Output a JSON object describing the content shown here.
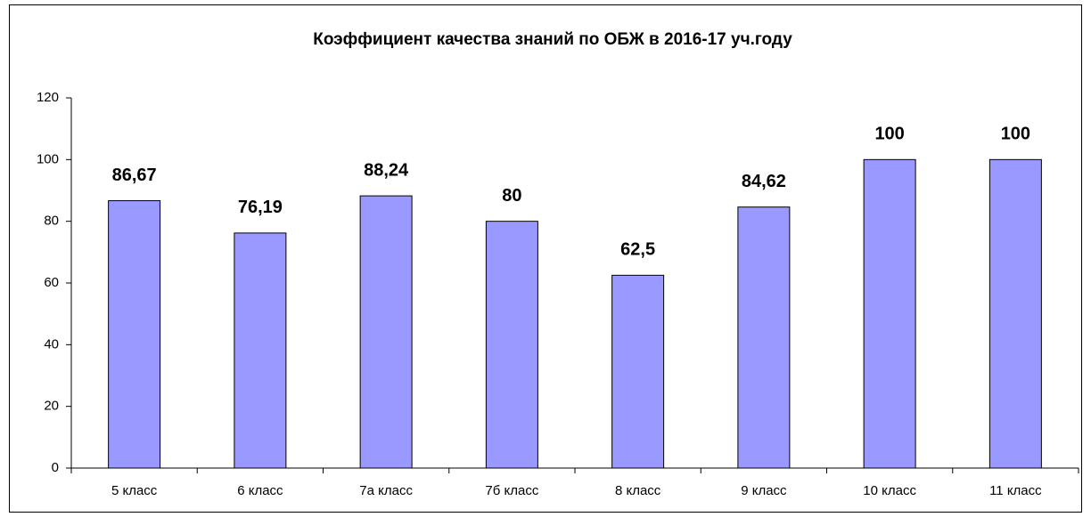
{
  "chart_data": {
    "type": "bar",
    "title": "Коэффициент качества знаний по ОБЖ в 2016-17 уч.году",
    "categories": [
      "5 класс",
      "6 класс",
      "7а класс",
      "7б класс",
      "8 класс",
      "9 класс",
      "10 класс",
      "11 класс"
    ],
    "values": [
      86.67,
      76.19,
      88.24,
      80,
      62.5,
      84.62,
      100,
      100
    ],
    "value_labels": [
      "86,67",
      "76,19",
      "88,24",
      "80",
      "62,5",
      "84,62",
      "100",
      "100"
    ],
    "color": "#9999ff",
    "ylim": [
      0,
      120
    ],
    "yticks": [
      0,
      20,
      40,
      60,
      80,
      100,
      120
    ],
    "grid": false
  }
}
